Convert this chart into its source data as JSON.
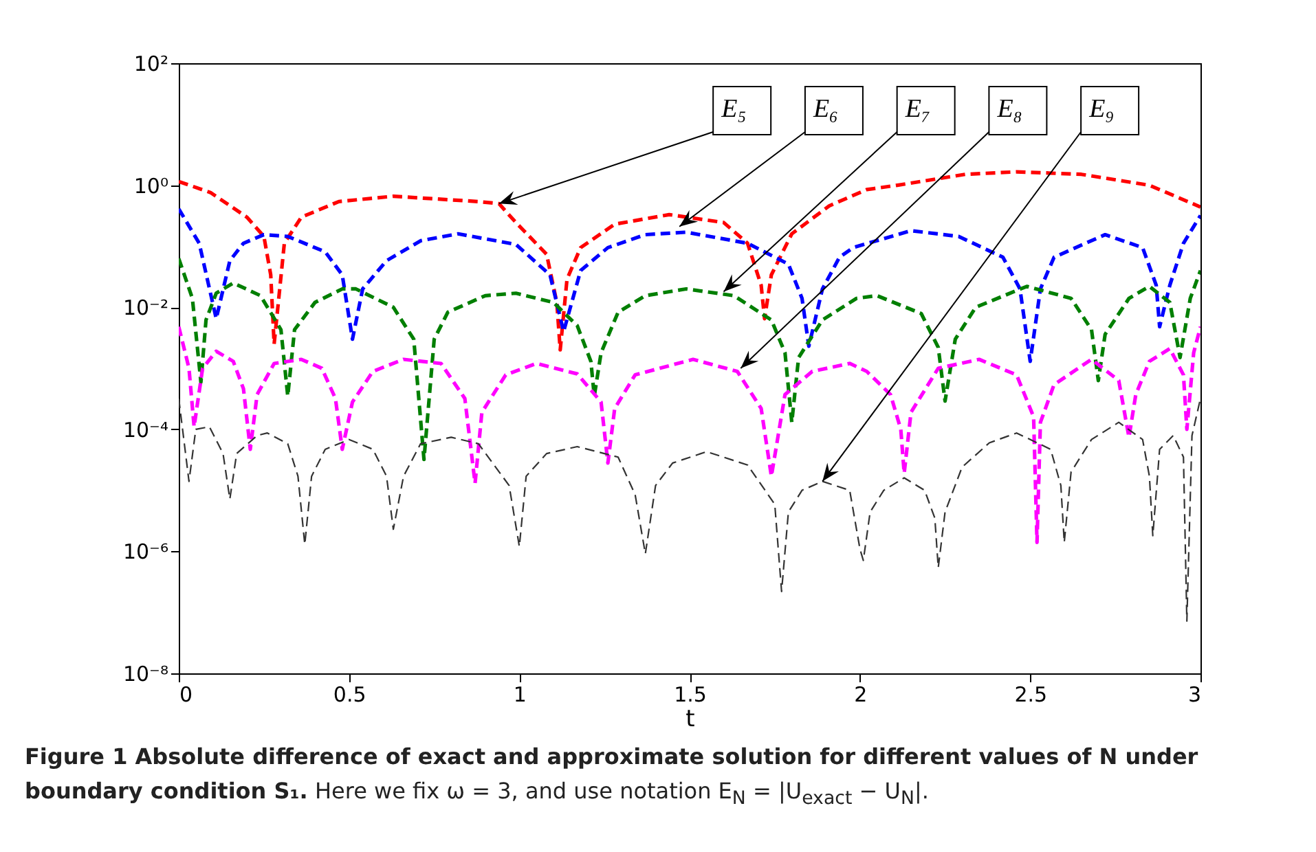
{
  "chart_data": {
    "type": "line",
    "title": "Figure 1  Absolute difference of exact and approximate solution for different values of N under boundary condition S₁.",
    "subtitle": "Here we fix ω = 3, and use notation E$_{N}$ = |U$_{exact}$ − U$_{N}$|.",
    "xlabel": "t",
    "log": "y",
    "line_style": "dashed",
    "xlim": [
      0,
      3
    ],
    "xticks": [
      0,
      0.5,
      1,
      1.5,
      2,
      2.5,
      3
    ],
    "ylim": [
      1e-08,
      100
    ],
    "yticks": [
      {
        "value": 1e-08,
        "label": "10⁻⁸"
      },
      {
        "value": 1e-06,
        "label": "10⁻⁶"
      },
      {
        "value": 0.0001,
        "label": "10⁻⁴"
      },
      {
        "value": 0.01,
        "label": "10⁻²"
      },
      {
        "value": 1,
        "label": "10⁰"
      },
      {
        "value": 100,
        "label": "10²"
      }
    ],
    "annotations": [
      {
        "text": "E₅",
        "x": 0.94,
        "y": 0.5
      },
      {
        "text": "E₆",
        "x": 1.47,
        "y": 0.21
      },
      {
        "text": "E₇",
        "x": 1.6,
        "y": 0.018
      },
      {
        "text": "E₈",
        "x": 1.65,
        "y": 0.001
      },
      {
        "text": "E₉",
        "x": 1.89,
        "y": 1.4e-05
      }
    ],
    "series": [
      {
        "color": "#ff0000",
        "x": [
          0,
          0.093,
          0.2,
          0.25,
          0.27,
          0.28,
          0.31,
          0.36,
          0.47,
          0.63,
          0.88,
          0.94,
          0.99,
          1.08,
          1.11,
          1.12,
          1.14,
          1.18,
          1.28,
          1.44,
          1.6,
          1.67,
          1.71,
          1.72,
          1.74,
          1.8,
          1.91,
          2.02,
          2.11,
          2.31,
          2.46,
          2.65,
          2.85,
          3
        ],
        "values": [
          1.15,
          0.76,
          0.3,
          0.145,
          0.034,
          0.0025,
          0.112,
          0.3,
          0.54,
          0.66,
          0.54,
          0.5,
          0.245,
          0.074,
          0.012,
          0.002,
          0.029,
          0.095,
          0.23,
          0.33,
          0.245,
          0.112,
          0.023,
          0.0065,
          0.034,
          0.16,
          0.46,
          0.85,
          1.0,
          1.51,
          1.66,
          1.51,
          1.0,
          0.44
        ]
      },
      {
        "color": "#0000ff",
        "x": [
          0,
          0.06,
          0.11,
          0.15,
          0.19,
          0.25,
          0.32,
          0.43,
          0.48,
          0.51,
          0.54,
          0.61,
          0.71,
          0.82,
          0.99,
          1.09,
          1.13,
          1.18,
          1.26,
          1.37,
          1.49,
          1.67,
          1.79,
          1.83,
          1.85,
          1.89,
          1.94,
          1.98,
          2.15,
          2.29,
          2.42,
          2.47,
          2.5,
          2.53,
          2.57,
          2.72,
          2.83,
          2.87,
          2.88,
          2.91,
          2.95,
          3
        ],
        "values": [
          0.41,
          0.112,
          0.0065,
          0.058,
          0.112,
          0.155,
          0.145,
          0.081,
          0.034,
          0.003,
          0.02,
          0.058,
          0.123,
          0.16,
          0.107,
          0.034,
          0.004,
          0.04,
          0.095,
          0.155,
          0.17,
          0.112,
          0.051,
          0.014,
          0.0023,
          0.02,
          0.066,
          0.095,
          0.18,
          0.145,
          0.066,
          0.02,
          0.0013,
          0.02,
          0.066,
          0.155,
          0.095,
          0.023,
          0.0048,
          0.023,
          0.112,
          0.32
        ]
      },
      {
        "color": "#007f00",
        "x": [
          0,
          0.04,
          0.065,
          0.08,
          0.11,
          0.16,
          0.24,
          0.3,
          0.32,
          0.34,
          0.4,
          0.48,
          0.52,
          0.63,
          0.69,
          0.72,
          0.75,
          0.79,
          0.9,
          0.99,
          1.1,
          1.17,
          1.21,
          1.22,
          1.24,
          1.29,
          1.37,
          1.49,
          1.63,
          1.74,
          1.78,
          1.8,
          1.82,
          1.89,
          1.99,
          2.05,
          2.18,
          2.23,
          2.25,
          2.28,
          2.34,
          2.49,
          2.62,
          2.68,
          2.7,
          2.72,
          2.79,
          2.85,
          2.91,
          2.94,
          2.97,
          3
        ],
        "values": [
          0.063,
          0.014,
          0.00059,
          0.0062,
          0.017,
          0.025,
          0.0155,
          0.0043,
          0.00035,
          0.0043,
          0.012,
          0.02,
          0.02,
          0.01,
          0.003,
          3.2e-05,
          0.003,
          0.0083,
          0.0155,
          0.017,
          0.012,
          0.005,
          0.0013,
          0.00035,
          0.0018,
          0.0083,
          0.0155,
          0.02,
          0.0155,
          0.0062,
          0.0018,
          0.00013,
          0.0015,
          0.0062,
          0.014,
          0.0155,
          0.0079,
          0.0022,
          0.00029,
          0.003,
          0.01,
          0.022,
          0.014,
          0.0043,
          0.00063,
          0.0036,
          0.014,
          0.022,
          0.012,
          0.0015,
          0.014,
          0.04
        ]
      },
      {
        "color": "#ff00ff",
        "x": [
          0,
          0.03,
          0.045,
          0.07,
          0.11,
          0.16,
          0.19,
          0.21,
          0.23,
          0.28,
          0.36,
          0.42,
          0.46,
          0.48,
          0.51,
          0.57,
          0.66,
          0.77,
          0.84,
          0.87,
          0.89,
          0.96,
          1.05,
          1.17,
          1.24,
          1.26,
          1.28,
          1.34,
          1.51,
          1.64,
          1.71,
          1.74,
          1.78,
          1.86,
          1.97,
          2.02,
          2.09,
          2.12,
          2.13,
          2.15,
          2.23,
          2.35,
          2.46,
          2.51,
          2.52,
          2.53,
          2.57,
          2.68,
          2.76,
          2.79,
          2.81,
          2.85,
          2.91,
          2.95,
          2.96,
          2.98,
          3
        ],
        "values": [
          0.0048,
          0.001,
          0.00011,
          0.001,
          0.0019,
          0.0013,
          0.00046,
          4.7e-05,
          0.00037,
          0.0012,
          0.0014,
          0.001,
          0.00032,
          4.7e-05,
          0.00028,
          0.00089,
          0.0014,
          0.0012,
          0.00032,
          1.3e-05,
          0.00019,
          0.00078,
          0.0012,
          0.00081,
          0.00028,
          2.8e-05,
          0.00022,
          0.00078,
          0.0014,
          0.00089,
          0.00022,
          1.7e-05,
          0.00037,
          0.00089,
          0.0012,
          0.00089,
          0.00037,
          0.0001,
          1.9e-05,
          0.00019,
          0.001,
          0.0014,
          0.00078,
          0.00016,
          1.4e-06,
          0.00013,
          0.00054,
          0.0014,
          0.00063,
          7.4e-05,
          0.00037,
          0.0013,
          0.0021,
          0.00078,
          0.0001,
          0.0018,
          0.0048
        ]
      },
      {
        "color": "#333333",
        "x": [
          0,
          0.03,
          0.05,
          0.09,
          0.13,
          0.15,
          0.17,
          0.23,
          0.26,
          0.32,
          0.35,
          0.37,
          0.39,
          0.43,
          0.5,
          0.57,
          0.61,
          0.63,
          0.66,
          0.71,
          0.8,
          0.88,
          0.97,
          1,
          1.02,
          1.08,
          1.17,
          1.29,
          1.34,
          1.37,
          1.4,
          1.45,
          1.55,
          1.67,
          1.75,
          1.77,
          1.79,
          1.83,
          1.89,
          1.97,
          2,
          2.01,
          2.03,
          2.07,
          2.13,
          2.19,
          2.22,
          2.23,
          2.25,
          2.3,
          2.38,
          2.46,
          2.56,
          2.59,
          2.6,
          2.62,
          2.68,
          2.76,
          2.83,
          2.85,
          2.86,
          2.88,
          2.92,
          2.95,
          2.96,
          2.975,
          3
        ],
        "values": [
          0.00032,
          1.4e-05,
          0.0001,
          0.00011,
          4e-05,
          7.2e-06,
          4e-05,
          7.9e-05,
          8.7e-05,
          5.8e-05,
          1.7e-05,
          1.3e-06,
          1.7e-05,
          4.7e-05,
          6.8e-05,
          4.7e-05,
          1.7e-05,
          2.3e-06,
          1.7e-05,
          5.8e-05,
          7.4e-05,
          5.8e-05,
          1.2e-05,
          1.2e-06,
          1.7e-05,
          4e-05,
          5.2e-05,
          3.5e-05,
          8.5e-06,
          9.1e-07,
          1.2e-05,
          2.8e-05,
          4.3e-05,
          2.6e-05,
          5.9e-06,
          2.2e-07,
          4.4e-06,
          1e-05,
          1.4e-05,
          1e-05,
          1.1e-06,
          7.1e-07,
          4.4e-06,
          1e-05,
          1.6e-05,
          1e-05,
          3.5e-06,
          5.4e-07,
          4.4e-06,
          2.4e-05,
          6e-05,
          8.7e-05,
          4.7e-05,
          1.2e-05,
          1.4e-06,
          2e-05,
          6.8e-05,
          0.00013,
          6.8e-05,
          1.7e-05,
          1.8e-06,
          4.7e-05,
          7.9e-05,
          3.5e-05,
          7.2e-08,
          7.9e-05,
          0.00032
        ]
      }
    ]
  }
}
